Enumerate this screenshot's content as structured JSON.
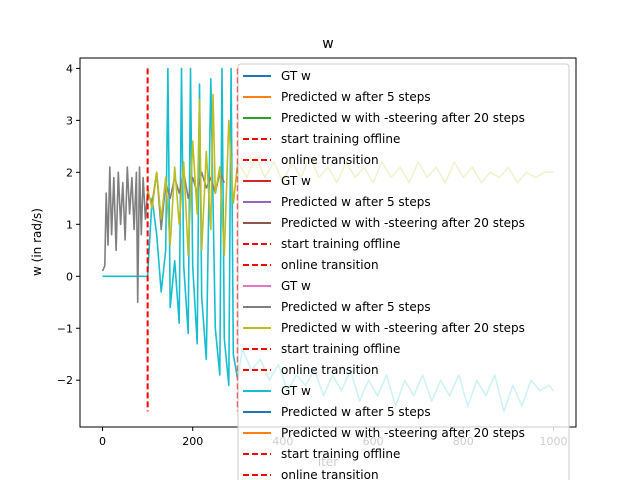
{
  "chart_data": {
    "type": "line",
    "title": "w",
    "xlabel": "iter",
    "ylabel": "w (in rad/s)",
    "xlim": [
      -50,
      1050
    ],
    "ylim": [
      -2.9,
      4.2
    ],
    "x_ticks": [
      0,
      200,
      400,
      600,
      800,
      1000
    ],
    "y_ticks": [
      -2,
      -1,
      0,
      1,
      2,
      3,
      4
    ],
    "x_tick_labels": [
      "0",
      "200",
      "400",
      "600",
      "800",
      "1000"
    ],
    "y_tick_labels": [
      "−2",
      "−1",
      "0",
      "1",
      "2",
      "3",
      "4"
    ],
    "grid": false,
    "legend_position": "right (overlapping plot)",
    "vlines": [
      {
        "x": 100,
        "y_from": -2.6,
        "y_to": 4.0,
        "color": "#ff0000",
        "style": "dashed"
      },
      {
        "x": 300,
        "y_from": -2.6,
        "y_to": 4.0,
        "color": "#ff0000",
        "style": "dashed"
      }
    ],
    "series": [
      {
        "name": "GT w",
        "color": "#17becf",
        "points": [
          [
            0,
            0
          ],
          [
            20,
            0
          ],
          [
            40,
            0
          ],
          [
            60,
            0
          ],
          [
            80,
            0
          ],
          [
            100,
            0
          ],
          [
            110,
            1.5
          ],
          [
            120,
            0.8
          ],
          [
            130,
            -0.3
          ],
          [
            140,
            0.5
          ],
          [
            145,
            4.0
          ],
          [
            150,
            -0.6
          ],
          [
            160,
            0.3
          ],
          [
            170,
            -0.9
          ],
          [
            175,
            4.0
          ],
          [
            180,
            0.2
          ],
          [
            190,
            -1.1
          ],
          [
            195,
            4.0
          ],
          [
            200,
            0.2
          ],
          [
            210,
            -1.3
          ],
          [
            215,
            3.7
          ],
          [
            220,
            -0.4
          ],
          [
            230,
            -1.6
          ],
          [
            240,
            3.8
          ],
          [
            250,
            -1.0
          ],
          [
            260,
            -1.9
          ],
          [
            265,
            4.0
          ],
          [
            270,
            -1.2
          ],
          [
            280,
            -2.1
          ],
          [
            285,
            4.0
          ],
          [
            290,
            -1.5
          ],
          [
            300,
            -2.0
          ],
          [
            310,
            -1.4
          ],
          [
            330,
            -1.8
          ],
          [
            350,
            -1.6
          ],
          [
            370,
            -2.0
          ],
          [
            390,
            -1.7
          ],
          [
            410,
            -2.2
          ],
          [
            430,
            -1.9
          ],
          [
            450,
            -2.1
          ],
          [
            470,
            -1.8
          ],
          [
            490,
            -2.3
          ],
          [
            510,
            -1.9
          ],
          [
            530,
            -2.2
          ],
          [
            550,
            -1.8
          ],
          [
            570,
            -2.4
          ],
          [
            590,
            -2.0
          ],
          [
            610,
            -2.3
          ],
          [
            630,
            -1.9
          ],
          [
            650,
            -2.5
          ],
          [
            670,
            -2.0
          ],
          [
            690,
            -2.3
          ],
          [
            710,
            -1.9
          ],
          [
            730,
            -2.4
          ],
          [
            750,
            -2.0
          ],
          [
            770,
            -2.3
          ],
          [
            790,
            -1.9
          ],
          [
            810,
            -2.5
          ],
          [
            830,
            -2.0
          ],
          [
            850,
            -2.3
          ],
          [
            870,
            -1.9
          ],
          [
            890,
            -2.6
          ],
          [
            910,
            -2.1
          ],
          [
            930,
            -2.5
          ],
          [
            950,
            -2.0
          ],
          [
            970,
            -2.2
          ],
          [
            990,
            -2.1
          ],
          [
            1000,
            -2.2
          ]
        ]
      },
      {
        "name": "Predicted w after 5 steps",
        "color": "#7f7f7f",
        "points": [
          [
            0,
            0.1
          ],
          [
            5,
            0.2
          ],
          [
            8,
            1.6
          ],
          [
            12,
            0.6
          ],
          [
            16,
            2.1
          ],
          [
            20,
            0.8
          ],
          [
            25,
            1.9
          ],
          [
            30,
            0.5
          ],
          [
            35,
            2.0
          ],
          [
            40,
            1.0
          ],
          [
            45,
            1.8
          ],
          [
            50,
            0.7
          ],
          [
            55,
            2.1
          ],
          [
            60,
            1.2
          ],
          [
            65,
            1.9
          ],
          [
            70,
            0.9
          ],
          [
            75,
            2.0
          ],
          [
            78,
            -0.5
          ],
          [
            82,
            2.1
          ],
          [
            86,
            0.8
          ],
          [
            90,
            1.9
          ],
          [
            95,
            1.1
          ],
          [
            100,
            1.6
          ],
          [
            110,
            1.4
          ],
          [
            120,
            2.0
          ],
          [
            130,
            0.9
          ],
          [
            140,
            1.8
          ],
          [
            150,
            1.5
          ],
          [
            160,
            1.9
          ],
          [
            170,
            1.6
          ],
          [
            180,
            2.0
          ],
          [
            190,
            1.5
          ],
          [
            200,
            1.9
          ],
          [
            210,
            1.6
          ],
          [
            220,
            2.0
          ],
          [
            230,
            1.7
          ],
          [
            240,
            1.9
          ],
          [
            250,
            1.6
          ],
          [
            260,
            2.0
          ],
          [
            270,
            1.8
          ]
        ]
      },
      {
        "name": "Predicted w with -steering after 20 steps",
        "color": "#bcbd22",
        "points": [
          [
            100,
            1.7
          ],
          [
            110,
            1.3
          ],
          [
            120,
            2.0
          ],
          [
            130,
            1.1
          ],
          [
            140,
            1.9
          ],
          [
            150,
            0.6
          ],
          [
            160,
            2.1
          ],
          [
            170,
            1.0
          ],
          [
            180,
            2.2
          ],
          [
            190,
            0.4
          ],
          [
            200,
            2.6
          ],
          [
            210,
            1.2
          ],
          [
            215,
            3.4
          ],
          [
            220,
            0.5
          ],
          [
            230,
            2.4
          ],
          [
            240,
            0.9
          ],
          [
            245,
            3.5
          ],
          [
            250,
            1.6
          ],
          [
            260,
            2.1
          ],
          [
            270,
            0.4
          ],
          [
            280,
            3.0
          ],
          [
            290,
            1.4
          ],
          [
            300,
            2.2
          ],
          [
            320,
            1.9
          ],
          [
            340,
            2.3
          ],
          [
            360,
            1.9
          ],
          [
            380,
            2.2
          ],
          [
            400,
            1.8
          ],
          [
            420,
            2.2
          ],
          [
            440,
            1.9
          ],
          [
            460,
            2.3
          ],
          [
            480,
            1.9
          ],
          [
            500,
            2.1
          ],
          [
            520,
            1.8
          ],
          [
            540,
            2.2
          ],
          [
            560,
            1.9
          ],
          [
            580,
            2.1
          ],
          [
            600,
            1.8
          ],
          [
            620,
            2.2
          ],
          [
            640,
            1.9
          ],
          [
            660,
            2.1
          ],
          [
            680,
            1.8
          ],
          [
            700,
            2.2
          ],
          [
            720,
            1.9
          ],
          [
            740,
            2.1
          ],
          [
            760,
            1.8
          ],
          [
            780,
            2.2
          ],
          [
            800,
            1.9
          ],
          [
            820,
            2.1
          ],
          [
            840,
            1.8
          ],
          [
            860,
            2.0
          ],
          [
            880,
            1.9
          ],
          [
            900,
            2.1
          ],
          [
            920,
            1.8
          ],
          [
            940,
            2.0
          ],
          [
            960,
            1.9
          ],
          [
            980,
            2.0
          ],
          [
            1000,
            2.0
          ]
        ]
      }
    ]
  },
  "legend": {
    "items": [
      {
        "label": "GT w",
        "color": "#1f77b4",
        "style": "solid"
      },
      {
        "label": "Predicted w after 5 steps",
        "color": "#ff7f0e",
        "style": "solid"
      },
      {
        "label": "Predicted w with -steering after 20 steps",
        "color": "#2ca02c",
        "style": "solid"
      },
      {
        "label": "start training offline",
        "color": "#ff0000",
        "style": "dashed"
      },
      {
        "label": "online transition",
        "color": "#ff0000",
        "style": "dashed"
      },
      {
        "label": "GT w",
        "color": "#d62728",
        "style": "solid"
      },
      {
        "label": "Predicted w after 5 steps",
        "color": "#9467bd",
        "style": "solid"
      },
      {
        "label": "Predicted w with -steering after 20 steps",
        "color": "#8c564b",
        "style": "solid"
      },
      {
        "label": "start training offline",
        "color": "#ff0000",
        "style": "dashed"
      },
      {
        "label": "online transition",
        "color": "#ff0000",
        "style": "dashed"
      },
      {
        "label": "GT w",
        "color": "#e377c2",
        "style": "solid"
      },
      {
        "label": "Predicted w after 5 steps",
        "color": "#7f7f7f",
        "style": "solid"
      },
      {
        "label": "Predicted w with -steering after 20 steps",
        "color": "#bcbd22",
        "style": "solid"
      },
      {
        "label": "start training offline",
        "color": "#ff0000",
        "style": "dashed"
      },
      {
        "label": "online transition",
        "color": "#ff0000",
        "style": "dashed"
      },
      {
        "label": "GT w",
        "color": "#17becf",
        "style": "solid"
      },
      {
        "label": "Predicted w after 5 steps",
        "color": "#1f77b4",
        "style": "solid"
      },
      {
        "label": "Predicted w with -steering after 20 steps",
        "color": "#ff7f0e",
        "style": "solid"
      },
      {
        "label": "start training offline",
        "color": "#ff0000",
        "style": "dashed"
      },
      {
        "label": "online transition",
        "color": "#ff0000",
        "style": "dashed"
      }
    ]
  }
}
